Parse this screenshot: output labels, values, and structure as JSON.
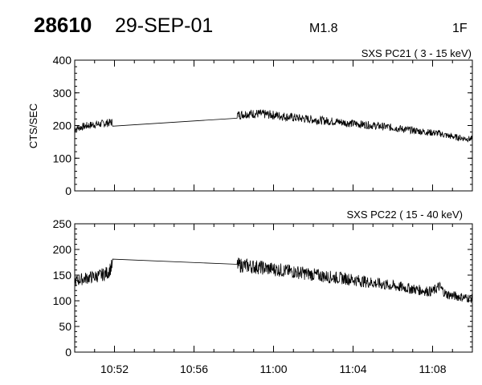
{
  "header": {
    "event_id": "28610",
    "date": "29-SEP-01",
    "goes_class": "M1.8",
    "h_alpha_class": "1F"
  },
  "chart_data": [
    {
      "type": "line",
      "title": "SXS PC21  (  3 - 15 keV)",
      "ylabel": "CTS/SEC",
      "xlabel": "",
      "x_unit": "UT (hh:mm)",
      "xlim": [
        "10:50:00",
        "11:10:00"
      ],
      "ylim": [
        0,
        400
      ],
      "yticks": [
        0,
        100,
        200,
        300,
        400
      ],
      "xticks": [
        "10:52",
        "10:56",
        "11:00",
        "11:04",
        "11:08"
      ],
      "series": [
        {
          "points": [
            [
              "10:50:00",
              190
            ],
            [
              "10:50:20",
              195
            ],
            [
              "10:50:40",
              200
            ],
            [
              "10:51:00",
              203
            ],
            [
              "10:51:20",
              205
            ],
            [
              "10:51:40",
              208
            ],
            [
              "10:51:55",
              210
            ],
            [
              "10:58:10",
              232
            ],
            [
              "10:58:40",
              236
            ],
            [
              "10:59:10",
              236
            ],
            [
              "10:59:40",
              234
            ],
            [
              "11:00:10",
              231
            ],
            [
              "11:00:40",
              227
            ],
            [
              "11:01:10",
              223
            ],
            [
              "11:01:40",
              220
            ],
            [
              "11:02:10",
              217
            ],
            [
              "11:02:40",
              214
            ],
            [
              "11:03:10",
              212
            ],
            [
              "11:03:40",
              208
            ],
            [
              "11:04:10",
              205
            ],
            [
              "11:04:40",
              202
            ],
            [
              "11:05:10",
              199
            ],
            [
              "11:05:40",
              196
            ],
            [
              "11:06:10",
              192
            ],
            [
              "11:06:40",
              188
            ],
            [
              "11:07:10",
              184
            ],
            [
              "11:07:40",
              180
            ],
            [
              "11:08:00",
              178
            ],
            [
              "11:08:20",
              176
            ],
            [
              "11:08:40",
              170
            ],
            [
              "11:09:00",
              166
            ],
            [
              "11:09:20",
              163
            ],
            [
              "11:09:40",
              160
            ],
            [
              "11:10:00",
              158
            ]
          ]
        }
      ]
    },
    {
      "type": "line",
      "title": "SXS PC22  ( 15 - 40 keV)",
      "ylabel": "",
      "xlabel": "",
      "x_unit": "UT (hh:mm)",
      "xlim": [
        "10:50:00",
        "11:10:00"
      ],
      "ylim": [
        0,
        250
      ],
      "yticks": [
        0,
        50,
        100,
        150,
        200,
        250
      ],
      "xticks": [
        "10:52",
        "10:56",
        "11:00",
        "11:04",
        "11:08"
      ],
      "series": [
        {
          "points": [
            [
              "10:50:00",
              138
            ],
            [
              "10:50:20",
              142
            ],
            [
              "10:50:40",
              145
            ],
            [
              "10:51:00",
              147
            ],
            [
              "10:51:20",
              150
            ],
            [
              "10:51:40",
              155
            ],
            [
              "10:51:55",
              170
            ],
            [
              "10:58:10",
              170
            ],
            [
              "10:58:40",
              168
            ],
            [
              "10:59:10",
              166
            ],
            [
              "10:59:40",
              163
            ],
            [
              "11:00:10",
              161
            ],
            [
              "11:00:40",
              158
            ],
            [
              "11:01:10",
              156
            ],
            [
              "11:01:40",
              153
            ],
            [
              "11:02:10",
              150
            ],
            [
              "11:02:40",
              147
            ],
            [
              "11:03:10",
              145
            ],
            [
              "11:03:40",
              143
            ],
            [
              "11:04:10",
              140
            ],
            [
              "11:04:40",
              137
            ],
            [
              "11:05:10",
              134
            ],
            [
              "11:05:40",
              131
            ],
            [
              "11:06:10",
              128
            ],
            [
              "11:06:40",
              125
            ],
            [
              "11:07:10",
              122
            ],
            [
              "11:07:40",
              119
            ],
            [
              "11:08:00",
              118
            ],
            [
              "11:08:20",
              128
            ],
            [
              "11:08:40",
              113
            ],
            [
              "11:09:00",
              110
            ],
            [
              "11:09:20",
              108
            ],
            [
              "11:09:40",
              106
            ],
            [
              "11:10:00",
              104
            ]
          ]
        }
      ]
    }
  ]
}
